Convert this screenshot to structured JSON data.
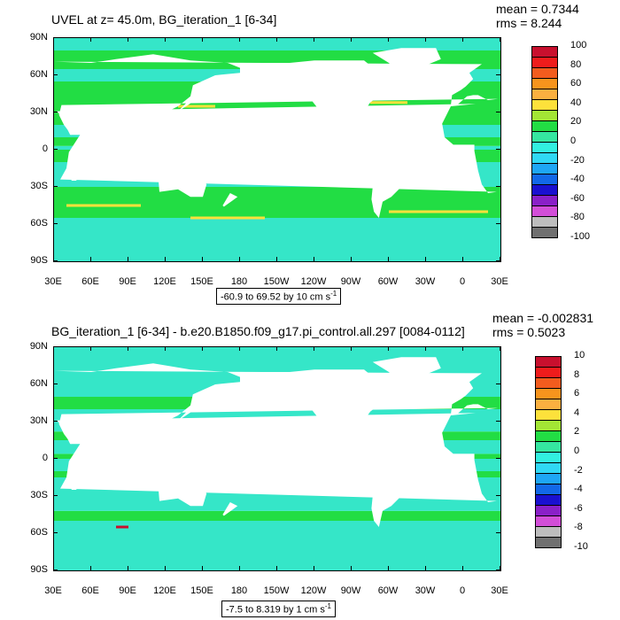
{
  "panels": [
    {
      "title": "UVEL at z=  45.0m, BG_iteration_1 [6-34]",
      "mean_text": "mean = 0.7344",
      "rms_text": "rms = 8.244",
      "range_text": "-60.9 to 69.52 by 10 cm s",
      "range_unit_sup": "-1",
      "colorbar_labels": [
        "100",
        "80",
        "60",
        "40",
        "20",
        "0",
        "-20",
        "-40",
        "-60",
        "-80",
        "-100"
      ],
      "colorbar_colors": [
        "#c8102e",
        "#ef1c1c",
        "#f25c1e",
        "#f7941d",
        "#fbb040",
        "#fde13b",
        "#a3e635",
        "#22dd44",
        "#35e6a0",
        "#32f0e0",
        "#30d8f5",
        "#1ea6f5",
        "#1268e8",
        "#1a10d0",
        "#8a20c8",
        "#d24ed8",
        "#bdbdbd",
        "#707070"
      ],
      "field": "var1"
    },
    {
      "title": "BG_iteration_1 [6-34] - b.e20.B1850.f09_g17.pi_control.all.297 [0084-0112]",
      "mean_text": "mean = -0.002831",
      "rms_text": "rms = 0.5023",
      "range_text": "-7.5 to 8.319 by 1 cm s",
      "range_unit_sup": "-1",
      "colorbar_labels": [
        "10",
        "8",
        "6",
        "4",
        "2",
        "0",
        "-2",
        "-4",
        "-6",
        "-8",
        "-10"
      ],
      "colorbar_colors": [
        "#c8102e",
        "#ef1c1c",
        "#f25c1e",
        "#f7941d",
        "#fbb040",
        "#fde13b",
        "#a3e635",
        "#22dd44",
        "#35e6a0",
        "#32f0e0",
        "#30d8f5",
        "#1ea6f5",
        "#1268e8",
        "#1a10d0",
        "#8a20c8",
        "#d24ed8",
        "#bdbdbd",
        "#707070"
      ],
      "field": "var2"
    }
  ],
  "axes": {
    "lat_labels": [
      "90N",
      "60N",
      "30N",
      "0",
      "30S",
      "60S",
      "90S"
    ],
    "lon_labels": [
      "30E",
      "60E",
      "90E",
      "120E",
      "150E",
      "180",
      "150W",
      "120W",
      "90W",
      "60W",
      "30W",
      "0",
      "30E"
    ]
  },
  "colors": {
    "ocean_green": "#22dd44",
    "ocean_cyan": "#35e6c8",
    "ocean_light": "#32f0e0",
    "jet_yellow": "#fde13b",
    "jet_lime": "#a3e635",
    "land": "#ffffff"
  }
}
